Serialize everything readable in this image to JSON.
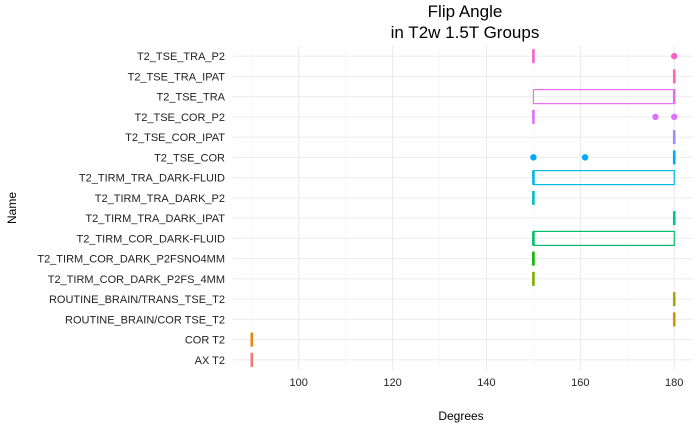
{
  "chart_data": {
    "type": "boxplot",
    "orientation": "horizontal",
    "title": "Flip Angle\nin T2w 1.5T Groups",
    "xlabel": "Degrees",
    "ylabel": "Name",
    "xlim": [
      86,
      184
    ],
    "xticks": [
      100,
      120,
      140,
      160,
      180
    ],
    "grid": true,
    "legend": "none",
    "categories": [
      "T2_TSE_TRA_P2",
      "T2_TSE_TRA_IPAT",
      "T2_TSE_TRA",
      "T2_TSE_COR_P2",
      "T2_TSE_COR_IPAT",
      "T2_TSE_COR",
      "T2_TIRM_TRA_DARK-FLUID",
      "T2_TIRM_TRA_DARK_P2",
      "T2_TIRM_TRA_DARK_IPAT",
      "T2_TIRM_COR_DARK-FLUID",
      "T2_TIRM_COR_DARK_P2FSNO4MM",
      "T2_TIRM_COR_DARK_P2FS_4MM",
      "ROUTINE_BRAIN/TRANS_TSE_T2",
      "ROUTINE_BRAIN/COR TSE_T2",
      "COR T2",
      "AX T2"
    ],
    "series": [
      {
        "values": {
          "min": 150,
          "q1": 150,
          "median": 150,
          "q3": 150,
          "max": 150
        },
        "outliers": [
          180
        ],
        "color": "#FF61C3"
      },
      {
        "values": {
          "min": 180,
          "q1": 180,
          "median": 180,
          "q3": 180,
          "max": 180
        },
        "outliers": [],
        "color": "#FF64B0"
      },
      {
        "values": {
          "min": 150,
          "q1": 150,
          "median": 180,
          "q3": 180,
          "max": 180
        },
        "outliers": [],
        "color": "#E76BF3"
      },
      {
        "values": {
          "min": 150,
          "q1": 150,
          "median": 150,
          "q3": 150,
          "max": 150
        },
        "outliers": [
          176,
          180
        ],
        "color": "#DB72FB"
      },
      {
        "values": {
          "min": 180,
          "q1": 180,
          "median": 180,
          "q3": 180,
          "max": 180
        },
        "outliers": [],
        "color": "#9590FF"
      },
      {
        "values": {
          "min": 180,
          "q1": 180,
          "median": 180,
          "q3": 180,
          "max": 180
        },
        "outliers": [
          150,
          161
        ],
        "color": "#00A9FF"
      },
      {
        "values": {
          "min": 150,
          "q1": 150,
          "median": 150,
          "q3": 180,
          "max": 180
        },
        "outliers": [],
        "color": "#00B8E7"
      },
      {
        "values": {
          "min": 150,
          "q1": 150,
          "median": 150,
          "q3": 150,
          "max": 150
        },
        "outliers": [],
        "color": "#00BFC4"
      },
      {
        "values": {
          "min": 180,
          "q1": 180,
          "median": 180,
          "q3": 180,
          "max": 180
        },
        "outliers": [],
        "color": "#00C19A"
      },
      {
        "values": {
          "min": 150,
          "q1": 150,
          "median": 150,
          "q3": 180,
          "max": 180
        },
        "outliers": [],
        "color": "#00BE67"
      },
      {
        "values": {
          "min": 150,
          "q1": 150,
          "median": 150,
          "q3": 150,
          "max": 150
        },
        "outliers": [],
        "color": "#0CB702"
      },
      {
        "values": {
          "min": 150,
          "q1": 150,
          "median": 150,
          "q3": 150,
          "max": 150
        },
        "outliers": [],
        "color": "#7CAE00"
      },
      {
        "values": {
          "min": 180,
          "q1": 180,
          "median": 180,
          "q3": 180,
          "max": 180
        },
        "outliers": [],
        "color": "#ABA300"
      },
      {
        "values": {
          "min": 180,
          "q1": 180,
          "median": 180,
          "q3": 180,
          "max": 180
        },
        "outliers": [],
        "color": "#CD9600"
      },
      {
        "values": {
          "min": 90,
          "q1": 90,
          "median": 90,
          "q3": 90,
          "max": 90
        },
        "outliers": [],
        "color": "#E68613"
      },
      {
        "values": {
          "min": 90,
          "q1": 90,
          "median": 90,
          "q3": 90,
          "max": 90
        },
        "outliers": [],
        "color": "#F8766D"
      }
    ]
  }
}
